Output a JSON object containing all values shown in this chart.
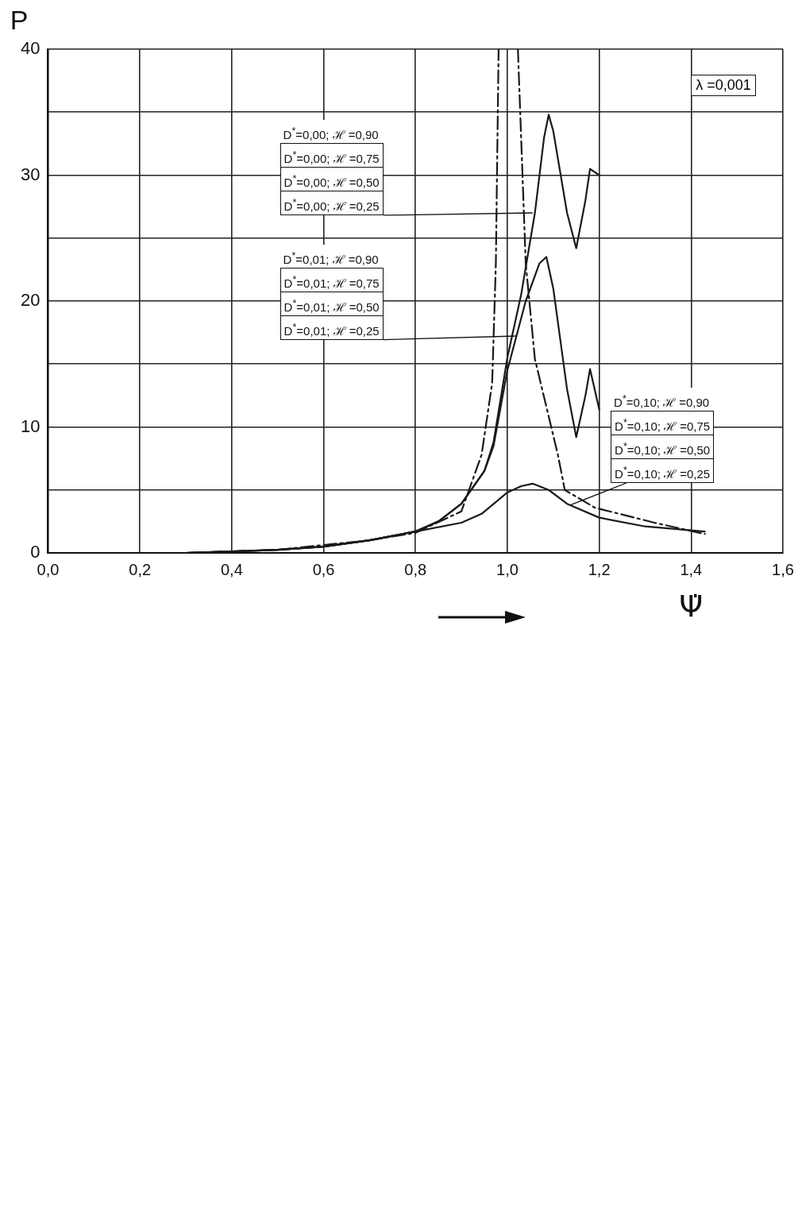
{
  "chart_data": {
    "type": "line",
    "xlabel": "Ψ̇",
    "ylabel": "P",
    "xlim": [
      0,
      1.6
    ],
    "ylim": [
      0,
      40
    ],
    "xticks": [
      {
        "value": 0,
        "label": "0,0"
      },
      {
        "value": 0.2,
        "label": "0,2"
      },
      {
        "value": 0.4,
        "label": "0,4"
      },
      {
        "value": 0.6,
        "label": "0,6"
      },
      {
        "value": 0.8,
        "label": "0,8"
      },
      {
        "value": 1.0,
        "label": "1,0"
      },
      {
        "value": 1.2,
        "label": "1,2"
      },
      {
        "value": 1.4,
        "label": "1,4"
      },
      {
        "value": 1.6,
        "label": "1,6"
      }
    ],
    "yticks": [
      0,
      {
        "value": 5,
        "label": null
      },
      10,
      {
        "value": 15,
        "label": null
      },
      20,
      {
        "value": 25,
        "label": null
      },
      30,
      {
        "value": 35,
        "label": null
      },
      40
    ],
    "grid": true,
    "legend": false,
    "marker": "none",
    "series": [
      {
        "color": "#1a1a1a",
        "line_style": "solid",
        "x": [
          0.3,
          0.4,
          0.5,
          0.6,
          0.7,
          0.8,
          0.85,
          0.9,
          0.95,
          0.97,
          1.0,
          1.03,
          1.06,
          1.08,
          1.09,
          1.1,
          1.13,
          1.15,
          1.17,
          1.18,
          1.2
        ],
        "values": [
          0,
          0.1,
          0.25,
          0.5,
          1.0,
          1.7,
          2.5,
          3.9,
          6.5,
          8.8,
          15.5,
          20.5,
          27,
          33,
          34.8,
          33.5,
          27,
          24.2,
          28,
          30.5,
          30
        ]
      },
      {
        "color": "#1a1a1a",
        "line_style": "solid",
        "x": [
          0.3,
          0.4,
          0.5,
          0.6,
          0.7,
          0.8,
          0.85,
          0.9,
          0.95,
          0.97,
          1.0,
          1.04,
          1.07,
          1.085,
          1.1,
          1.13,
          1.15,
          1.17,
          1.18,
          1.2
        ],
        "values": [
          0,
          0.1,
          0.25,
          0.5,
          1.0,
          1.7,
          2.5,
          3.9,
          6.5,
          8.5,
          14.5,
          20,
          23,
          23.5,
          21,
          13,
          9.2,
          12.5,
          14.6,
          11.4
        ]
      },
      {
        "color": "#1a1a1a",
        "line_style": "dashed",
        "x": [
          0.3,
          0.5,
          0.7,
          0.8,
          0.9,
          0.944,
          0.967,
          0.975,
          0.981,
          0.99,
          1.023,
          1.04,
          1.06,
          1.11,
          1.125,
          1.19,
          1.32,
          1.43
        ],
        "values": [
          0,
          0.25,
          1.0,
          1.6,
          3.3,
          7.8,
          13.5,
          23,
          40,
          null,
          40,
          23,
          15.4,
          7.8,
          5,
          3.6,
          2.4,
          1.5
        ]
      },
      {
        "color": "#1a1a1a",
        "line_style": "solid",
        "x": [
          0.3,
          0.5,
          0.6,
          0.7,
          0.8,
          0.9,
          0.944,
          1.0,
          1.03,
          1.055,
          1.09,
          1.13,
          1.2,
          1.3,
          1.43
        ],
        "values": [
          0,
          0.25,
          0.5,
          1.0,
          1.7,
          2.4,
          3.1,
          4.8,
          5.3,
          5.5,
          5,
          3.9,
          2.8,
          2.1,
          1.7
        ]
      }
    ],
    "annotations": [
      "D$^{*}$=0,00; ℋ =0,90",
      "D$^{*}$=0,00; ℋ =0,75",
      "D$^{*}$=0,00; ℋ =0,50",
      {
        "text": "D$^{*}$=0,00; ℋ =0,25",
        "x": 1.055,
        "y": 27
      },
      "D$^{*}$=0,01; ℋ =0,90",
      "D$^{*}$=0,01; ℋ =0,75",
      "D$^{*}$=0,01; ℋ =0,50",
      {
        "text": "D$^{*}$=0,01; ℋ =0,25",
        "x": 1.02,
        "y": 17.2
      },
      "D$^{*}$=0,10; ℋ =0,90",
      "D$^{*}$=0,10; ℋ =0,75",
      "D$^{*}$=0,10; ℋ =0,50",
      {
        "text": "D$^{*}$=0,10; ℋ =0,25",
        "x": 1.137,
        "y": 3.8
      },
      "λ =0,001"
    ]
  }
}
